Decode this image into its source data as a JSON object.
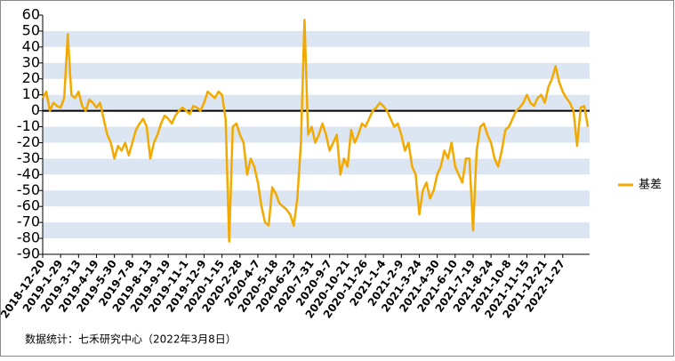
{
  "chart_data": {
    "type": "line",
    "categories": [
      "2018-12-20",
      null,
      null,
      null,
      null,
      "2019-1-29",
      null,
      null,
      null,
      null,
      "2019-3-13",
      null,
      null,
      null,
      null,
      "2019-4-19",
      null,
      null,
      null,
      null,
      "2019-5-30",
      null,
      null,
      null,
      null,
      "2019-7-8",
      null,
      null,
      null,
      null,
      "2019-8-13",
      null,
      null,
      null,
      null,
      "2019-9-19",
      null,
      null,
      null,
      null,
      "2019-11-1",
      null,
      null,
      null,
      null,
      "2019-12-9",
      null,
      null,
      null,
      null,
      "2020-1-15",
      null,
      null,
      null,
      null,
      "2020-2-28",
      null,
      null,
      null,
      null,
      "2020-4-7",
      null,
      null,
      null,
      null,
      "2020-5-18",
      null,
      null,
      null,
      null,
      "2020-6-23",
      null,
      null,
      null,
      null,
      "2020-7-31",
      null,
      null,
      null,
      null,
      "2020-9-7",
      null,
      null,
      null,
      null,
      "2020-10-21",
      null,
      null,
      null,
      null,
      "2020-11-26",
      null,
      null,
      null,
      null,
      "2021-1-4",
      null,
      null,
      null,
      null,
      "2021-2-9",
      null,
      null,
      null,
      null,
      "2021-3-24",
      null,
      null,
      null,
      null,
      "2021-4-30",
      null,
      null,
      null,
      null,
      "2021-6-10",
      null,
      null,
      null,
      null,
      "2021-7-19",
      null,
      null,
      null,
      null,
      "2021-8-24",
      null,
      null,
      null,
      null,
      "2021-10-8",
      null,
      null,
      null,
      null,
      "2021-11-15",
      null,
      null,
      null,
      null,
      "2021-12-21",
      null,
      null,
      null,
      null,
      "2022-1-27",
      null,
      null,
      null,
      null,
      null,
      null,
      null
    ],
    "series": [
      {
        "name": "基差",
        "color": "#f2a900",
        "values": [
          8,
          12,
          0,
          5,
          3,
          2,
          8,
          48,
          10,
          8,
          12,
          3,
          0,
          7,
          5,
          2,
          5,
          -5,
          -15,
          -20,
          -30,
          -22,
          -25,
          -20,
          -28,
          -20,
          -12,
          -8,
          -5,
          -10,
          -30,
          -20,
          -15,
          -8,
          -3,
          -5,
          -8,
          -3,
          0,
          2,
          0,
          -2,
          3,
          2,
          0,
          5,
          12,
          10,
          8,
          12,
          10,
          -5,
          -82,
          -10,
          -8,
          -15,
          -20,
          -40,
          -30,
          -35,
          -45,
          -60,
          -70,
          -72,
          -48,
          -52,
          -58,
          -60,
          -62,
          -65,
          -72,
          -55,
          -20,
          57,
          -15,
          -10,
          -20,
          -15,
          -8,
          -15,
          -25,
          -20,
          -15,
          -40,
          -30,
          -35,
          -12,
          -20,
          -15,
          -8,
          -10,
          -5,
          0,
          2,
          5,
          3,
          0,
          -5,
          -10,
          -8,
          -15,
          -25,
          -20,
          -35,
          -40,
          -65,
          -50,
          -45,
          -55,
          -50,
          -40,
          -35,
          -25,
          -30,
          -20,
          -35,
          -40,
          -45,
          -30,
          -30,
          -75,
          -25,
          -10,
          -8,
          -15,
          -20,
          -30,
          -35,
          -25,
          -12,
          -10,
          -5,
          0,
          2,
          5,
          10,
          5,
          3,
          8,
          10,
          5,
          15,
          20,
          28,
          18,
          12,
          8,
          5,
          0,
          -22,
          2,
          3,
          -10
        ]
      }
    ],
    "ylim": [
      -90,
      60
    ],
    "yticks": [
      -90,
      -80,
      -70,
      -60,
      -50,
      -40,
      -30,
      -20,
      -10,
      0,
      10,
      20,
      30,
      40,
      50,
      60
    ],
    "grid": "bands",
    "legend": "right",
    "note": "数据统计：七禾研究中心（2022年3月8日）"
  }
}
